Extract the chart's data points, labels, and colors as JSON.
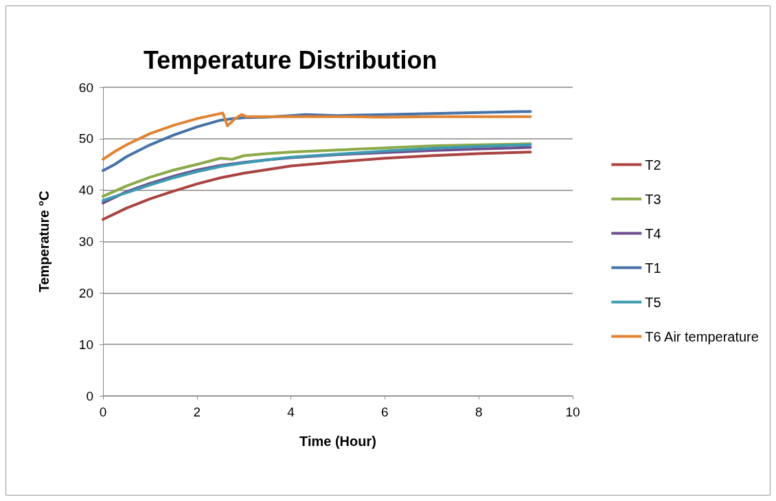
{
  "chart_data": {
    "type": "line",
    "title": "Temperature Distribution",
    "xlabel": "Time (Hour)",
    "ylabel": "Temperature °C",
    "xlim": [
      0,
      10
    ],
    "xticks": [
      0,
      2,
      4,
      6,
      8,
      10
    ],
    "ylim": [
      0,
      60
    ],
    "yticks": [
      0,
      10,
      20,
      30,
      40,
      50,
      60
    ],
    "grid": "y",
    "legend": "right",
    "marker": "none",
    "line_style": "solid",
    "series": [
      {
        "name": "T2",
        "color": "#a94442",
        "x": [
          0,
          0.5,
          1,
          1.5,
          2,
          2.5,
          3,
          3.5,
          4,
          5,
          6,
          7,
          8,
          9.1
        ],
        "values": [
          34.3,
          36.5,
          38.3,
          39.8,
          41.2,
          42.4,
          43.3,
          44.0,
          44.7,
          45.5,
          46.2,
          46.7,
          47.1,
          47.4
        ]
      },
      {
        "name": "T3",
        "color": "#8aaa4a",
        "x": [
          0,
          0.5,
          1,
          1.5,
          2,
          2.5,
          2.75,
          3,
          3.5,
          4,
          5,
          6,
          7,
          8,
          9.1
        ],
        "values": [
          38.8,
          40.8,
          42.5,
          43.9,
          45.0,
          46.2,
          46.0,
          46.7,
          47.1,
          47.4,
          47.8,
          48.2,
          48.6,
          48.8,
          49.0
        ]
      },
      {
        "name": "T4",
        "color": "#6f4e8e",
        "x": [
          0,
          0.5,
          1,
          1.5,
          2,
          2.5,
          3,
          3.5,
          4,
          5,
          6,
          7,
          8,
          9.1
        ],
        "values": [
          37.5,
          39.7,
          41.3,
          42.7,
          43.9,
          44.8,
          45.4,
          45.9,
          46.3,
          46.9,
          47.3,
          47.7,
          48.0,
          48.3
        ]
      },
      {
        "name": "T1",
        "color": "#4572a8",
        "x": [
          0,
          0.25,
          0.5,
          1,
          1.5,
          2,
          2.5,
          2.75,
          3,
          3.5,
          4,
          4.3,
          5,
          6,
          7,
          8,
          9.1
        ],
        "values": [
          43.8,
          45.0,
          46.5,
          48.8,
          50.7,
          52.3,
          53.6,
          53.9,
          54.1,
          54.2,
          54.5,
          54.7,
          54.5,
          54.7,
          54.9,
          55.1,
          55.3
        ]
      },
      {
        "name": "T5",
        "color": "#3d9ab0",
        "x": [
          0,
          0.5,
          1,
          1.5,
          2,
          2.5,
          3,
          3.5,
          4,
          5,
          6,
          7,
          8,
          9.1
        ],
        "values": [
          38.0,
          39.5,
          41.0,
          42.4,
          43.6,
          44.6,
          45.3,
          45.9,
          46.4,
          47.0,
          47.6,
          48.1,
          48.5,
          48.8
        ]
      },
      {
        "name": "T6 Air temperature",
        "color": "#e08434",
        "x": [
          0,
          0.25,
          0.5,
          1,
          1.5,
          2,
          2.5,
          2.55,
          2.65,
          2.8,
          2.95,
          3.05,
          4,
          5,
          6,
          7,
          8,
          9.1
        ],
        "values": [
          46.0,
          47.5,
          48.8,
          51.0,
          52.6,
          53.9,
          54.9,
          55.0,
          52.5,
          53.8,
          54.7,
          54.3,
          54.3,
          54.3,
          54.2,
          54.3,
          54.3,
          54.3
        ]
      }
    ]
  }
}
